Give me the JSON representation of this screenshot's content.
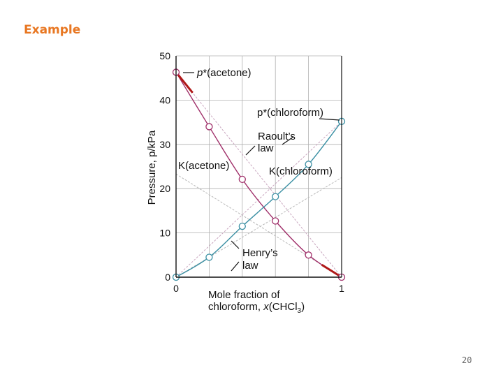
{
  "slide": {
    "title": "Example",
    "page_number": "20"
  },
  "colors": {
    "title": "#e87722",
    "acetone_curve": "#a0306a",
    "chloroform_curve": "#3a8fa3",
    "henry_line": "#b8b8b8",
    "raoult_line": "#c9a6bf",
    "limit_segment": "#b01818",
    "grid": "#b0b0b0"
  },
  "chart_data": {
    "type": "line",
    "xlim": [
      0,
      1
    ],
    "ylim": [
      0,
      50
    ],
    "grid": true,
    "x_tick_labels": [
      {
        "value": 0,
        "label": "0"
      },
      {
        "value": 1,
        "label": "1"
      }
    ],
    "y_ticks": [
      0,
      10,
      20,
      30,
      40,
      50
    ],
    "ylabel": "Pressure, p/kPa",
    "xlabel": "Mole fraction of chloroform, x(CHCl3)",
    "series": [
      {
        "x": [
          0,
          0.2,
          0.4,
          0.6,
          0.8,
          1.0
        ],
        "y": [
          46.3,
          34.0,
          22.1,
          12.7,
          5.0,
          0
        ]
      },
      {
        "x": [
          0,
          0.2,
          0.4,
          0.6,
          0.8,
          1.0
        ],
        "y": [
          0,
          4.5,
          11.5,
          18.2,
          25.5,
          35.2
        ]
      }
    ],
    "reference_lines": [
      {
        "from": [
          0,
          46.3
        ],
        "to": [
          1,
          0
        ]
      },
      {
        "from": [
          0,
          0
        ],
        "to": [
          1,
          35.2
        ]
      },
      {
        "from": [
          0,
          0
        ],
        "to": [
          1,
          22.5
        ]
      },
      {
        "from": [
          0,
          23.3
        ],
        "to": [
          1,
          0
        ]
      }
    ],
    "annotations": {
      "p_acetone": "p*(acetone)",
      "p_chloroform": "p*(chloroform)",
      "raoult_line1": "Raoult’s",
      "raoult_line2": "law",
      "k_acetone": "K(acetone)",
      "k_chloroform": "K(chloroform)",
      "henry_line1": "Henry’s",
      "henry_line2": "law",
      "xlabel_line1": "Mole fraction of",
      "xlabel_line2_prefix": "chloroform, ",
      "xlabel_var": "x",
      "xlabel_chem": "(CHCl",
      "xlabel_sub": "3",
      "xlabel_close": ")"
    }
  }
}
